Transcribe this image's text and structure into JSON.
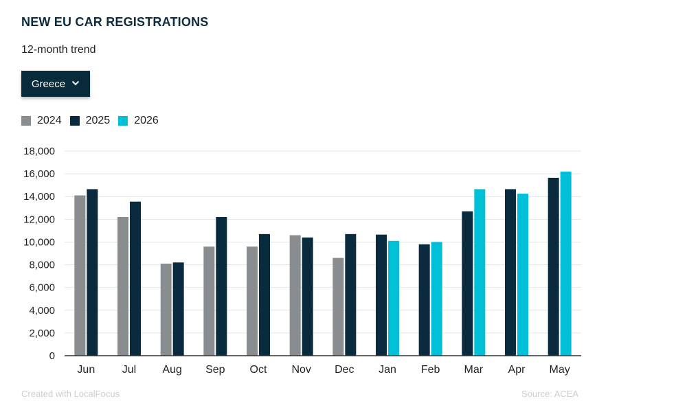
{
  "header": {
    "title": "NEW EU CAR REGISTRATIONS",
    "subtitle": "12-month trend"
  },
  "dropdown": {
    "selected": "Greece",
    "icon": "chevron-down-icon"
  },
  "colors": {
    "2024": "#8a8d8f",
    "2025": "#0a2b3d",
    "2026": "#00c0d8",
    "grid": "#e1e6e9",
    "axis": "#333333"
  },
  "footer": {
    "credit": "Created with LocalFocus",
    "source": "Source:  ACEA"
  },
  "chart_data": {
    "type": "bar",
    "categories": [
      "Jun",
      "Jul",
      "Aug",
      "Sep",
      "Oct",
      "Nov",
      "Dec",
      "Jan",
      "Feb",
      "Mar",
      "Apr",
      "May"
    ],
    "series": [
      {
        "name": "2024",
        "values": [
          14100,
          12200,
          8100,
          9600,
          9600,
          10600,
          8600,
          null,
          null,
          null,
          null,
          null
        ]
      },
      {
        "name": "2025",
        "values": [
          14650,
          13550,
          8200,
          12200,
          10700,
          10400,
          10700,
          10650,
          9800,
          12700,
          14650,
          15650
        ]
      },
      {
        "name": "2026",
        "values": [
          null,
          null,
          null,
          null,
          null,
          null,
          null,
          10100,
          10000,
          14650,
          14250,
          16200
        ]
      }
    ],
    "ylim": [
      0,
      18000
    ],
    "yticks": [
      0,
      2000,
      4000,
      6000,
      8000,
      10000,
      12000,
      14000,
      16000,
      18000
    ],
    "ytick_labels": [
      "0",
      "2,000",
      "4,000",
      "6,000",
      "8,000",
      "10,000",
      "12,000",
      "14,000",
      "16,000",
      "18,000"
    ],
    "grid": true,
    "legend_position": "top-left"
  }
}
